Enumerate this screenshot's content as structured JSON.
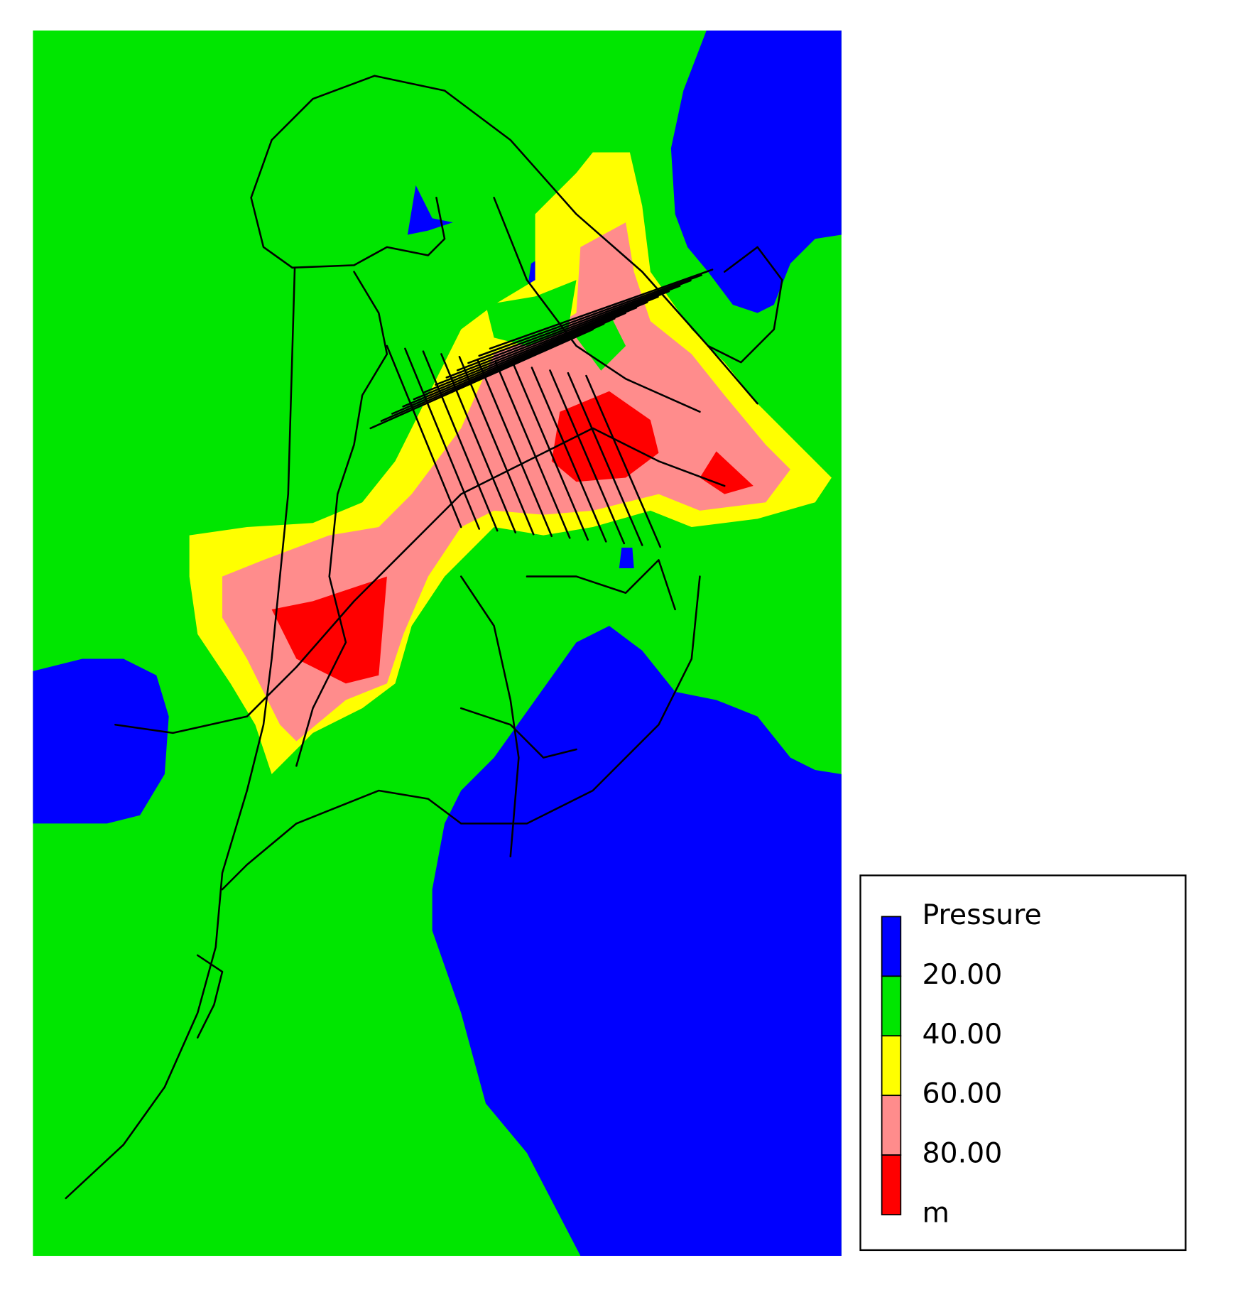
{
  "legend": {
    "title": "Pressure",
    "unit": "m",
    "colors": [
      "#0000ff",
      "#00e600",
      "#ffff00",
      "#ff8c8c",
      "#ff0000"
    ],
    "breaks": [
      {
        "value": 20,
        "label": "20.00"
      },
      {
        "value": 40,
        "label": "40.00"
      },
      {
        "value": 60,
        "label": "60.00"
      },
      {
        "value": 80,
        "label": "80.00"
      }
    ]
  }
}
